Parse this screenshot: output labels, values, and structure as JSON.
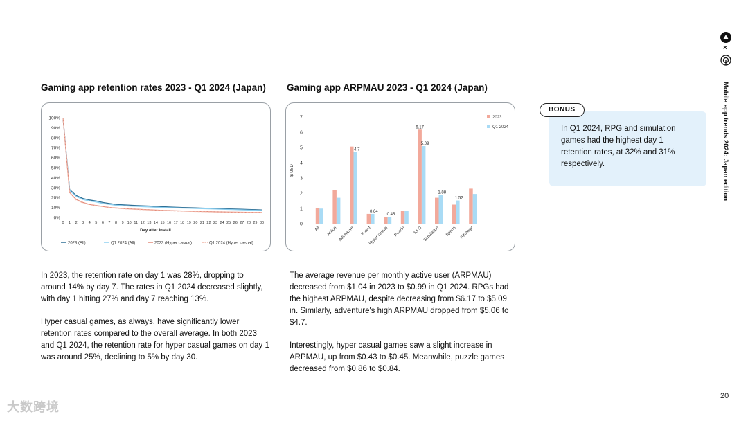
{
  "left_chart": {
    "title": "Gaming app retention rates 2023 - Q1 2024 (Japan)"
  },
  "right_chart": {
    "title": "Gaming app ARPMAU 2023 - Q1 2024 (Japan)"
  },
  "chart_data": [
    {
      "type": "line",
      "title": "Gaming app retention rates 2023 - Q1 2024 (Japan)",
      "xlabel": "Day after install",
      "ylabel": "",
      "x": [
        0,
        1,
        2,
        3,
        4,
        5,
        6,
        7,
        8,
        9,
        10,
        11,
        12,
        13,
        14,
        15,
        16,
        17,
        18,
        19,
        20,
        21,
        22,
        23,
        24,
        25,
        26,
        27,
        28,
        29,
        30
      ],
      "ylim": [
        0,
        100
      ],
      "yticks": [
        "0%",
        "10%",
        "20%",
        "30%",
        "40%",
        "50%",
        "60%",
        "70%",
        "80%",
        "90%",
        "100%"
      ],
      "legend_position": "bottom",
      "series": [
        {
          "name": "2023 (All)",
          "color": "#2e6f95",
          "style": "solid",
          "values": [
            100,
            28,
            22,
            19,
            17.5,
            16.5,
            15,
            14,
            13,
            12.7,
            12.3,
            12,
            11.7,
            11.4,
            11.1,
            10.8,
            10.5,
            10.2,
            10,
            9.8,
            9.6,
            9.4,
            9.2,
            9,
            8.8,
            8.6,
            8.4,
            8.2,
            8,
            7.8,
            7.5
          ]
        },
        {
          "name": "Q1 2024 (All)",
          "color": "#8fd0f0",
          "style": "solid",
          "values": [
            100,
            27,
            21,
            18,
            16.5,
            15.5,
            14,
            13,
            12.2,
            11.8,
            11.4,
            11.1,
            10.8,
            10.5,
            10.2,
            10,
            9.8,
            9.6,
            9.4,
            9.2,
            9,
            8.8,
            8.6,
            8.4,
            8.2,
            8,
            7.8,
            7.6,
            7.4,
            7.2,
            7
          ]
        },
        {
          "name": "2023 (Hyper casual)",
          "color": "#e38a7a",
          "style": "solid",
          "values": [
            100,
            25,
            18,
            15,
            13,
            12,
            11,
            10,
            9.5,
            9,
            8.6,
            8.3,
            8,
            7.7,
            7.4,
            7.1,
            6.9,
            6.7,
            6.5,
            6.3,
            6.1,
            5.9,
            5.8,
            5.6,
            5.5,
            5.4,
            5.3,
            5.2,
            5.1,
            5,
            5
          ]
        },
        {
          "name": "Q1 2024 (Hyper casual)",
          "color": "#f2b7a8",
          "style": "dashed",
          "values": [
            100,
            25,
            17.5,
            14.5,
            12.8,
            11.7,
            10.8,
            9.9,
            9.3,
            8.8,
            8.4,
            8.1,
            7.8,
            7.5,
            7.2,
            6.9,
            6.7,
            6.5,
            6.3,
            6.1,
            5.9,
            5.8,
            5.6,
            5.5,
            5.4,
            5.3,
            5.2,
            5.1,
            5.1,
            5,
            5
          ]
        }
      ]
    },
    {
      "type": "bar",
      "title": "Gaming app ARPMAU 2023 - Q1 2024 (Japan)",
      "xlabel": "",
      "ylabel": "$ USD",
      "ylim": [
        0,
        7
      ],
      "yticks": [
        "0",
        "1",
        "2",
        "3",
        "4",
        "5",
        "6",
        "7"
      ],
      "legend_position": "top-right",
      "categories": [
        "All",
        "Action",
        "Adventure",
        "Board",
        "Hyper casual",
        "Puzzle",
        "RPG",
        "Simulation",
        "Sports",
        "Strategy"
      ],
      "series": [
        {
          "name": "2023",
          "color": "#f2a99b",
          "values": [
            1.04,
            2.2,
            5.06,
            0.64,
            0.43,
            0.86,
            6.17,
            1.7,
            1.25,
            2.3
          ],
          "labels": [
            "",
            "",
            "",
            "",
            "",
            "",
            "6.17",
            "",
            "",
            ""
          ]
        },
        {
          "name": "Q1 2024",
          "color": "#a9dbf5",
          "values": [
            0.99,
            1.7,
            4.7,
            0.64,
            0.45,
            0.84,
            5.09,
            1.88,
            1.52,
            1.95
          ],
          "labels": [
            "",
            "",
            "4.7",
            "0.64",
            "0.45",
            "",
            "5.09",
            "1.88",
            "1.52",
            ""
          ]
        }
      ]
    }
  ],
  "left_text": {
    "p1": "In 2023, the retention rate on day 1 was 28%, dropping to around 14% by day 7. The rates in Q1 2024 decreased slightly, with day 1 hitting 27% and day 7 reaching 13%.",
    "p2": "Hyper casual games, as always, have significantly lower retention rates compared to the overall average. In both 2023 and Q1 2024, the retention rate for hyper casual games on day 1 was around 25%, declining to 5% by day 30."
  },
  "right_text": {
    "p1": "The average revenue per monthly active user (ARPMAU) decreased from $1.04 in 2023 to $0.99 in Q1 2024. RPGs had the highest ARPMAU, despite decreasing from $6.17 to $5.09 in. Similarly, adventure's high ARPMAU dropped from $5.06 to $4.7.",
    "p2": "Interestingly, hyper casual games saw a slight increase in ARPMAU, up from $0.43 to $0.45. Meanwhile, puzzle games decreased from $0.86 to $0.84."
  },
  "bonus": {
    "badge": "BONUS",
    "text": "In Q1 2024, RPG and simulation games had the highest day 1 retention rates, at 32% and 31% respectively."
  },
  "sidebar": {
    "title": "Mobile app trends 2024: Japan edition",
    "times": "×"
  },
  "page_number": "20",
  "watermark": "大数跨境",
  "icons": [
    "brand-logo-icon",
    "partner-logo-icon"
  ]
}
